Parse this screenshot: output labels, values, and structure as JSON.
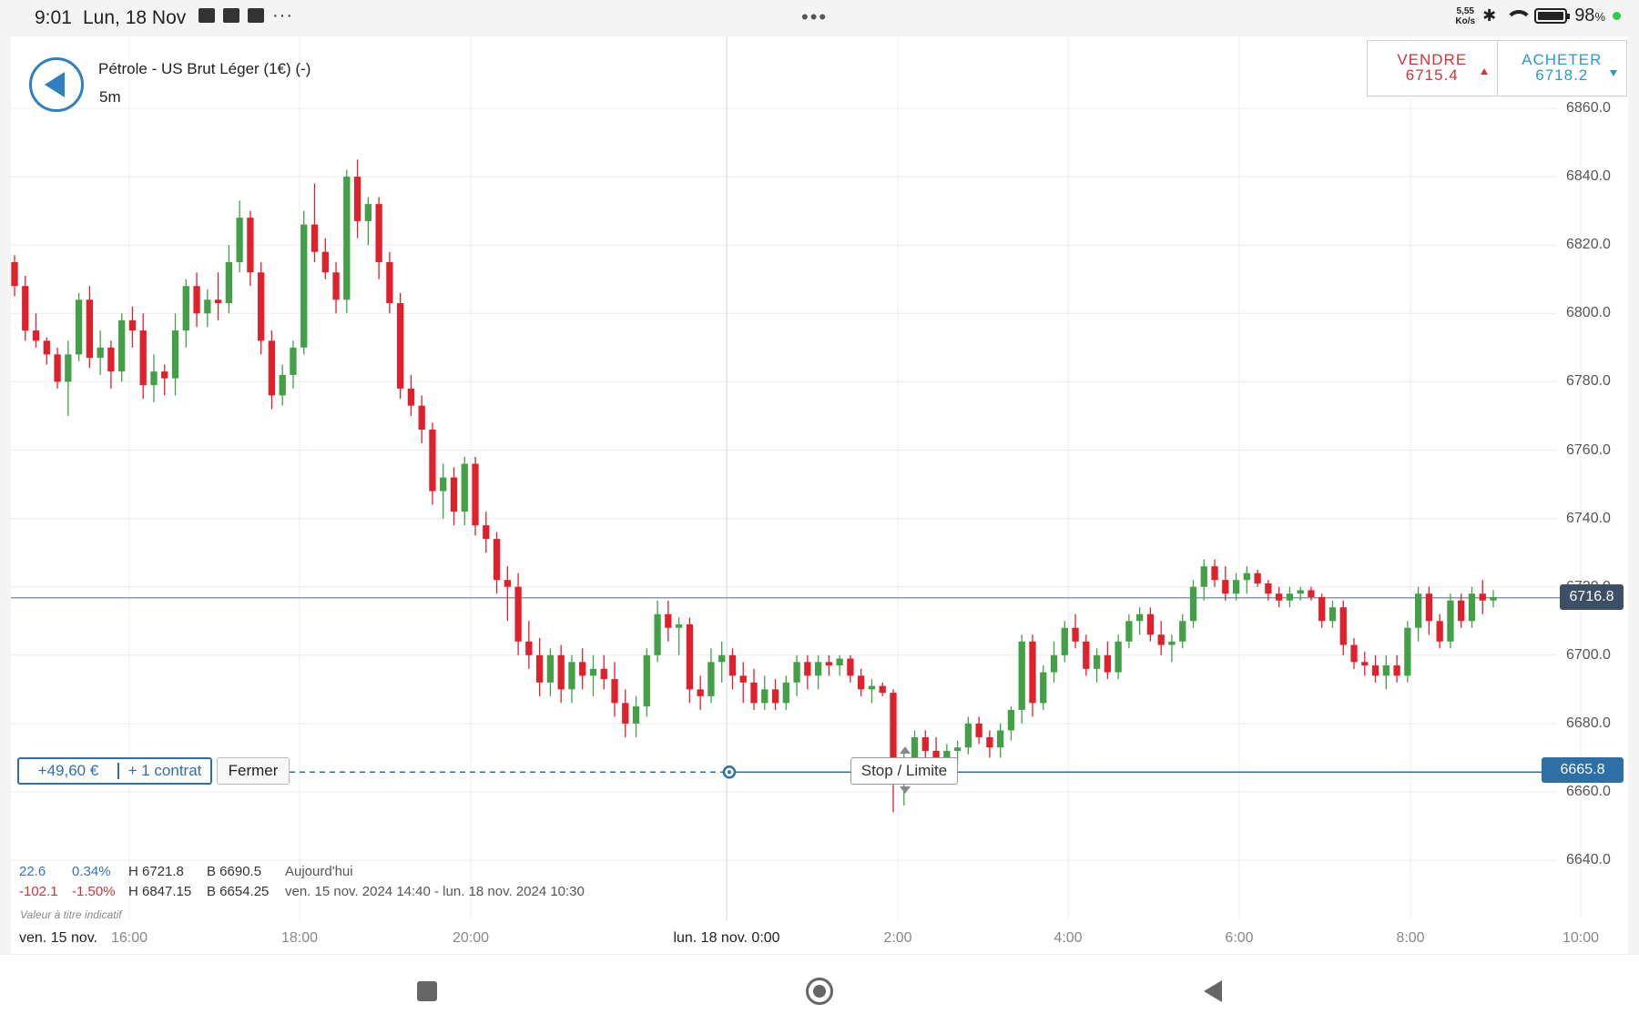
{
  "status_bar": {
    "time": "9:01",
    "date": "Lun, 18 Nov",
    "net_speed_value": "5,55",
    "net_speed_unit": "Ko/s",
    "battery_pct": "98",
    "battery_pct_unit": "%",
    "notification_icons": [
      "trash-icon",
      "mail-off-icon",
      "mail-off-icon",
      "more-dots-icon"
    ]
  },
  "header": {
    "instrument": "Pétrole - US Brut Léger (1€) (-)",
    "timeframe": "5m"
  },
  "trade": {
    "sell_label": "VENDRE",
    "sell_price": "6715.4",
    "buy_label": "ACHETER",
    "buy_price": "6718.2"
  },
  "position": {
    "pnl": "+49,60 €",
    "quantity": "+ 1 contrat",
    "close_label": "Fermer",
    "stop_limit_label": "Stop / Limite",
    "entry_price_tag": "6665.8"
  },
  "current_price_tag": "6716.8",
  "stats": {
    "today": {
      "change": "22.6",
      "change_pct": "0.34%",
      "high": "H 6721.8",
      "low": "B 6690.5",
      "label": "Aujourd'hui"
    },
    "range": {
      "change": "-102.1",
      "change_pct": "-1.50%",
      "high": "H 6847.15",
      "low": "B 6654.25",
      "label": "ven. 15 nov. 2024 14:40 - lun. 18 nov. 2024 10:30"
    },
    "disclaimer": "Valeur à titre indicatif"
  },
  "x_axis_labels": [
    {
      "text": "ven. 15 nov.",
      "dark": true
    },
    {
      "text": "16:00"
    },
    {
      "text": "18:00"
    },
    {
      "text": "20:00"
    },
    {
      "text": "lun. 18 nov. 0:00",
      "dark": true
    },
    {
      "text": "2:00"
    },
    {
      "text": "4:00"
    },
    {
      "text": "6:00"
    },
    {
      "text": "8:00"
    },
    {
      "text": "10:00"
    }
  ],
  "chart_data": {
    "type": "candlestick",
    "timeframe": "5m",
    "y_ticks": [
      "6860.0",
      "6840.0",
      "6820.0",
      "6800.0",
      "6780.0",
      "6760.0",
      "6740.0",
      "6720.0",
      "6700.0",
      "6680.0",
      "6660.0",
      "6640.0"
    ],
    "ylim": [
      6628,
      6866
    ],
    "current_price": 6716.8,
    "position_entry": 6665.8,
    "colors": {
      "up": "#43a047",
      "down": "#e0202a",
      "grid": "#ececec",
      "current_line": "#8a98a8",
      "position_line": "#2f6fa8"
    },
    "candles": [
      [
        6815,
        6817,
        6805,
        6808
      ],
      [
        6808,
        6811,
        6792,
        6795
      ],
      [
        6795,
        6800,
        6790,
        6792
      ],
      [
        6792,
        6793,
        6785,
        6788
      ],
      [
        6788,
        6790,
        6778,
        6780
      ],
      [
        6780,
        6792,
        6770,
        6788
      ],
      [
        6788,
        6806,
        6786,
        6804
      ],
      [
        6804,
        6808,
        6784,
        6787
      ],
      [
        6787,
        6795,
        6782,
        6790
      ],
      [
        6790,
        6792,
        6778,
        6783
      ],
      [
        6783,
        6800,
        6780,
        6798
      ],
      [
        6798,
        6802,
        6790,
        6795
      ],
      [
        6795,
        6800,
        6775,
        6779
      ],
      [
        6779,
        6788,
        6774,
        6783
      ],
      [
        6783,
        6785,
        6776,
        6781
      ],
      [
        6781,
        6800,
        6776,
        6795
      ],
      [
        6795,
        6810,
        6790,
        6808
      ],
      [
        6808,
        6812,
        6796,
        6800
      ],
      [
        6800,
        6807,
        6796,
        6804
      ],
      [
        6804,
        6812,
        6798,
        6803
      ],
      [
        6803,
        6820,
        6800,
        6815
      ],
      [
        6815,
        6833,
        6812,
        6828
      ],
      [
        6828,
        6830,
        6808,
        6812
      ],
      [
        6812,
        6815,
        6788,
        6792
      ],
      [
        6792,
        6795,
        6772,
        6776
      ],
      [
        6776,
        6785,
        6773,
        6782
      ],
      [
        6782,
        6792,
        6778,
        6790
      ],
      [
        6790,
        6830,
        6788,
        6826
      ],
      [
        6826,
        6838,
        6815,
        6818
      ],
      [
        6818,
        6822,
        6810,
        6812
      ],
      [
        6812,
        6815,
        6800,
        6804
      ],
      [
        6804,
        6842,
        6800,
        6840
      ],
      [
        6840,
        6845,
        6822,
        6827
      ],
      [
        6827,
        6834,
        6820,
        6832
      ],
      [
        6832,
        6834,
        6810,
        6815
      ],
      [
        6815,
        6818,
        6800,
        6803
      ],
      [
        6803,
        6806,
        6775,
        6778
      ],
      [
        6778,
        6782,
        6770,
        6773
      ],
      [
        6773,
        6776,
        6762,
        6766
      ],
      [
        6766,
        6768,
        6744,
        6748
      ],
      [
        6748,
        6756,
        6740,
        6752
      ],
      [
        6752,
        6755,
        6738,
        6742
      ],
      [
        6742,
        6758,
        6738,
        6756
      ],
      [
        6756,
        6758,
        6735,
        6738
      ],
      [
        6738,
        6742,
        6730,
        6734
      ],
      [
        6734,
        6736,
        6718,
        6722
      ],
      [
        6722,
        6726,
        6710,
        6720
      ],
      [
        6720,
        6724,
        6700,
        6704
      ],
      [
        6704,
        6710,
        6696,
        6700
      ],
      [
        6700,
        6705,
        6688,
        6692
      ],
      [
        6692,
        6702,
        6688,
        6700
      ],
      [
        6700,
        6703,
        6686,
        6690
      ],
      [
        6690,
        6700,
        6686,
        6698
      ],
      [
        6698,
        6702,
        6690,
        6694
      ],
      [
        6694,
        6700,
        6688,
        6696
      ],
      [
        6696,
        6700,
        6690,
        6693
      ],
      [
        6693,
        6698,
        6682,
        6686
      ],
      [
        6686,
        6690,
        6676,
        6680
      ],
      [
        6680,
        6688,
        6676,
        6685
      ],
      [
        6685,
        6702,
        6682,
        6700
      ],
      [
        6700,
        6716,
        6698,
        6712
      ],
      [
        6712,
        6716,
        6704,
        6708
      ],
      [
        6708,
        6711,
        6700,
        6709
      ],
      [
        6709,
        6711,
        6686,
        6690
      ],
      [
        6690,
        6694,
        6684,
        6688
      ],
      [
        6688,
        6702,
        6686,
        6698
      ],
      [
        6698,
        6704,
        6692,
        6700
      ],
      [
        6700,
        6702,
        6690,
        6694
      ],
      [
        6694,
        6698,
        6686,
        6692
      ],
      [
        6692,
        6696,
        6684,
        6686
      ],
      [
        6686,
        6694,
        6684,
        6690
      ],
      [
        6690,
        6693,
        6684,
        6686
      ],
      [
        6686,
        6694,
        6684,
        6692
      ],
      [
        6692,
        6700,
        6688,
        6698
      ],
      [
        6698,
        6700,
        6690,
        6694
      ],
      [
        6694,
        6700,
        6690,
        6698
      ],
      [
        6698,
        6700,
        6694,
        6697
      ],
      [
        6697,
        6700,
        6694,
        6699
      ],
      [
        6699,
        6700,
        6692,
        6694
      ],
      [
        6694,
        6696,
        6688,
        6690
      ],
      [
        6690,
        6693,
        6686,
        6691
      ],
      [
        6691,
        6692,
        6688,
        6689
      ],
      [
        6689,
        6690,
        6654,
        6664
      ],
      [
        6664,
        6672,
        6656,
        6668
      ],
      [
        6668,
        6678,
        6664,
        6676
      ],
      [
        6676,
        6678,
        6668,
        6672
      ],
      [
        6672,
        6676,
        6666,
        6669
      ],
      [
        6669,
        6674,
        6666,
        6672
      ],
      [
        6672,
        6675,
        6668,
        6673
      ],
      [
        6673,
        6682,
        6671,
        6680
      ],
      [
        6680,
        6682,
        6674,
        6676
      ],
      [
        6676,
        6678,
        6670,
        6673
      ],
      [
        6673,
        6680,
        6670,
        6678
      ],
      [
        6678,
        6685,
        6675,
        6684
      ],
      [
        6684,
        6706,
        6680,
        6704
      ],
      [
        6704,
        6706,
        6682,
        6686
      ],
      [
        6686,
        6697,
        6684,
        6695
      ],
      [
        6695,
        6704,
        6692,
        6700
      ],
      [
        6700,
        6710,
        6698,
        6708
      ],
      [
        6708,
        6712,
        6702,
        6704
      ],
      [
        6704,
        6706,
        6694,
        6696
      ],
      [
        6696,
        6702,
        6692,
        6700
      ],
      [
        6700,
        6704,
        6693,
        6695
      ],
      [
        6695,
        6706,
        6693,
        6704
      ],
      [
        6704,
        6712,
        6702,
        6710
      ],
      [
        6710,
        6714,
        6706,
        6712
      ],
      [
        6712,
        6714,
        6704,
        6706
      ],
      [
        6706,
        6710,
        6700,
        6703
      ],
      [
        6703,
        6706,
        6698,
        6704
      ],
      [
        6704,
        6712,
        6702,
        6710
      ],
      [
        6710,
        6722,
        6708,
        6720
      ],
      [
        6720,
        6728,
        6716,
        6726
      ],
      [
        6726,
        6728,
        6720,
        6722
      ],
      [
        6722,
        6726,
        6716,
        6718
      ],
      [
        6718,
        6724,
        6716,
        6722
      ],
      [
        6722,
        6726,
        6718,
        6724
      ],
      [
        6724,
        6725,
        6720,
        6721
      ],
      [
        6721,
        6722,
        6716,
        6718
      ],
      [
        6718,
        6720,
        6714,
        6716
      ],
      [
        6716,
        6720,
        6714,
        6718
      ],
      [
        6718,
        6720,
        6716,
        6719
      ],
      [
        6719,
        6720,
        6716,
        6717
      ],
      [
        6717,
        6718,
        6708,
        6710
      ],
      [
        6710,
        6716,
        6708,
        6714
      ],
      [
        6714,
        6716,
        6700,
        6703
      ],
      [
        6703,
        6705,
        6696,
        6698
      ],
      [
        6698,
        6701,
        6694,
        6697
      ],
      [
        6697,
        6700,
        6692,
        6694
      ],
      [
        6694,
        6700,
        6690,
        6697
      ],
      [
        6697,
        6700,
        6692,
        6694
      ],
      [
        6694,
        6710,
        6692,
        6708
      ],
      [
        6708,
        6720,
        6704,
        6718
      ],
      [
        6718,
        6720,
        6706,
        6710
      ],
      [
        6710,
        6712,
        6702,
        6704
      ],
      [
        6704,
        6718,
        6702,
        6716
      ],
      [
        6716,
        6718,
        6708,
        6710
      ],
      [
        6710,
        6720,
        6708,
        6718
      ],
      [
        6718,
        6722,
        6712,
        6716
      ],
      [
        6716,
        6719,
        6714,
        6717
      ]
    ]
  }
}
